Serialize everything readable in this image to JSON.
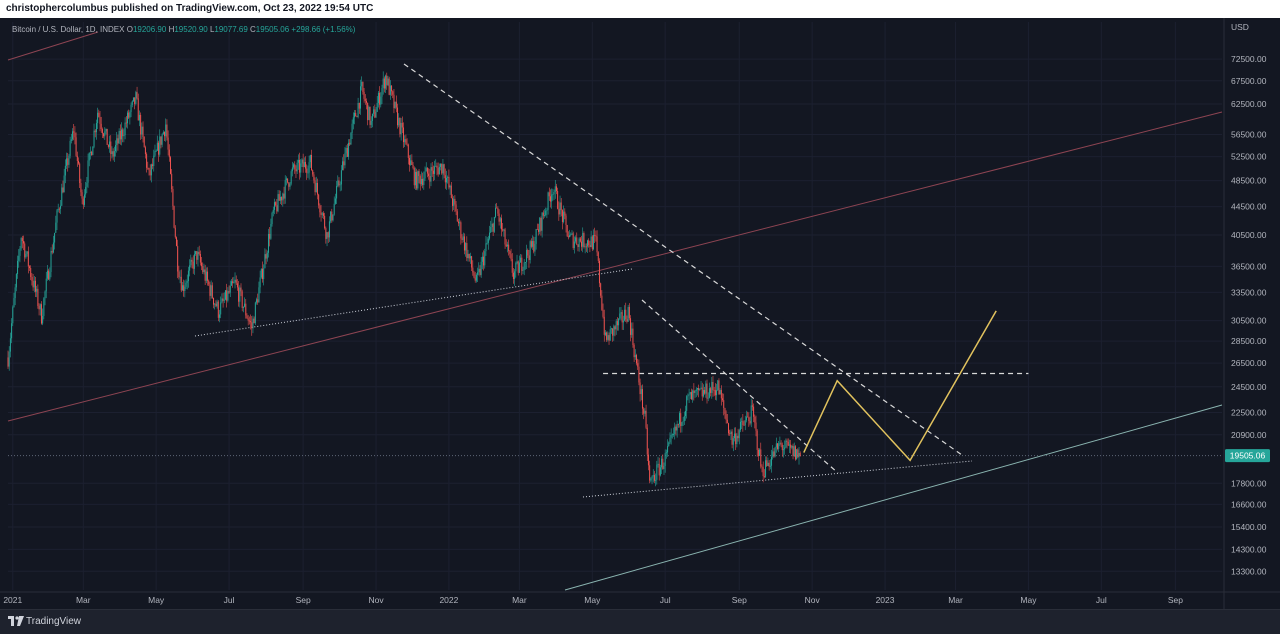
{
  "header": {
    "publisher_text": "christophercolumbus published on TradingView.com, Oct 23, 2022 19:54 UTC"
  },
  "legend": {
    "symbol": "Bitcoin / U.S. Dollar, 1D, INDEX",
    "open_label": "O",
    "open": "19206.90",
    "high_label": "H",
    "high": "19520.90",
    "low_label": "L",
    "low": "19077.69",
    "close_label": "C",
    "close": "19505.06",
    "change": "+298.66 (+1.56%)"
  },
  "footer": {
    "brand": "TradingView"
  },
  "chart_data": {
    "type": "line",
    "title": "",
    "ylabel": "USD",
    "scale": "log",
    "currency": "USD",
    "y_ticks": [
      72500,
      67500,
      62500,
      56500,
      52500,
      48500,
      44500,
      40500,
      36500,
      33500,
      30500,
      28500,
      26500,
      24500,
      22500,
      20900,
      17800,
      16600,
      15400,
      14300,
      13300
    ],
    "y_tick_labels": [
      "72500.00",
      "67500.00",
      "62500.00",
      "56500.00",
      "52500.00",
      "48500.00",
      "44500.00",
      "40500.00",
      "36500.00",
      "33500.00",
      "30500.00",
      "28500.00",
      "26500.00",
      "24500.00",
      "22500.00",
      "20900.00",
      "17800.00",
      "16600.00",
      "15400.00",
      "14300.00",
      "13300.00"
    ],
    "ylim": [
      12500,
      82000
    ],
    "x_ticks": [
      "2021-01-01",
      "2021-03-01",
      "2021-05-01",
      "2021-07-01",
      "2021-09-01",
      "2021-11-01",
      "2022-01-01",
      "2022-03-01",
      "2022-05-01",
      "2022-07-01",
      "2022-09-01",
      "2022-11-01",
      "2023-01-01",
      "2023-03-01",
      "2023-05-01",
      "2023-07-01",
      "2023-09-01"
    ],
    "x_tick_labels": [
      "2021",
      "Mar",
      "May",
      "Jul",
      "Sep",
      "Nov",
      "2022",
      "Mar",
      "May",
      "Jul",
      "Sep",
      "Nov",
      "2023",
      "Mar",
      "May",
      "Jul",
      "Sep"
    ],
    "xlim": [
      "2020-12-28",
      "2023-10-10"
    ],
    "last_price": 19505.06,
    "last_price_label": "19505.06",
    "price_keypoints": [
      [
        "2020-12-28",
        27000
      ],
      [
        "2021-01-08",
        40500
      ],
      [
        "2021-01-25",
        31000
      ],
      [
        "2021-02-08",
        44000
      ],
      [
        "2021-02-21",
        57500
      ],
      [
        "2021-02-28",
        45000
      ],
      [
        "2021-03-13",
        61000
      ],
      [
        "2021-03-25",
        52500
      ],
      [
        "2021-04-14",
        63500
      ],
      [
        "2021-04-25",
        49000
      ],
      [
        "2021-05-09",
        58500
      ],
      [
        "2021-05-19",
        37000
      ],
      [
        "2021-05-23",
        34000
      ],
      [
        "2021-06-04",
        38000
      ],
      [
        "2021-06-22",
        31500
      ],
      [
        "2021-07-06",
        34500
      ],
      [
        "2021-07-20",
        29800
      ],
      [
        "2021-08-07",
        43500
      ],
      [
        "2021-08-23",
        50000
      ],
      [
        "2021-09-07",
        51500
      ],
      [
        "2021-09-21",
        40500
      ],
      [
        "2021-10-05",
        51500
      ],
      [
        "2021-10-20",
        65500
      ],
      [
        "2021-10-28",
        58500
      ],
      [
        "2021-11-09",
        68500
      ],
      [
        "2021-11-21",
        58000
      ],
      [
        "2021-12-04",
        48500
      ],
      [
        "2021-12-27",
        51000
      ],
      [
        "2022-01-10",
        41500
      ],
      [
        "2022-01-24",
        34500
      ],
      [
        "2022-02-10",
        44000
      ],
      [
        "2022-02-24",
        35500
      ],
      [
        "2022-03-12",
        39000
      ],
      [
        "2022-03-29",
        47500
      ],
      [
        "2022-04-12",
        40000
      ],
      [
        "2022-05-04",
        39500
      ],
      [
        "2022-05-12",
        28500
      ],
      [
        "2022-05-31",
        31500
      ],
      [
        "2022-06-14",
        22000
      ],
      [
        "2022-06-18",
        17800
      ],
      [
        "2022-07-01",
        19300
      ],
      [
        "2022-07-20",
        23500
      ],
      [
        "2022-08-14",
        24500
      ],
      [
        "2022-08-26",
        20500
      ],
      [
        "2022-09-12",
        22500
      ],
      [
        "2022-09-20",
        18500
      ],
      [
        "2022-10-05",
        20200
      ],
      [
        "2022-10-22",
        19505
      ]
    ],
    "drawings": {
      "projection_path": [
        [
          "2022-10-25",
          19700
        ],
        [
          "2022-11-22",
          25000
        ],
        [
          "2023-01-22",
          19200
        ],
        [
          "2023-04-04",
          31500
        ]
      ],
      "resistance_level": {
        "price": 25600,
        "from": "2022-05-10",
        "to": "2023-05-01"
      },
      "last_price_dotted": {
        "price": 19505.06
      }
    }
  },
  "colors": {
    "background": "#131722",
    "up": "#26a69a",
    "down": "#ef5350",
    "projection": "#e1c25e",
    "trend_red": "#8d4452",
    "trend_teal": "#8ab4b0",
    "dashed": "#d9d9d9",
    "axis_text": "#b2b5be"
  }
}
